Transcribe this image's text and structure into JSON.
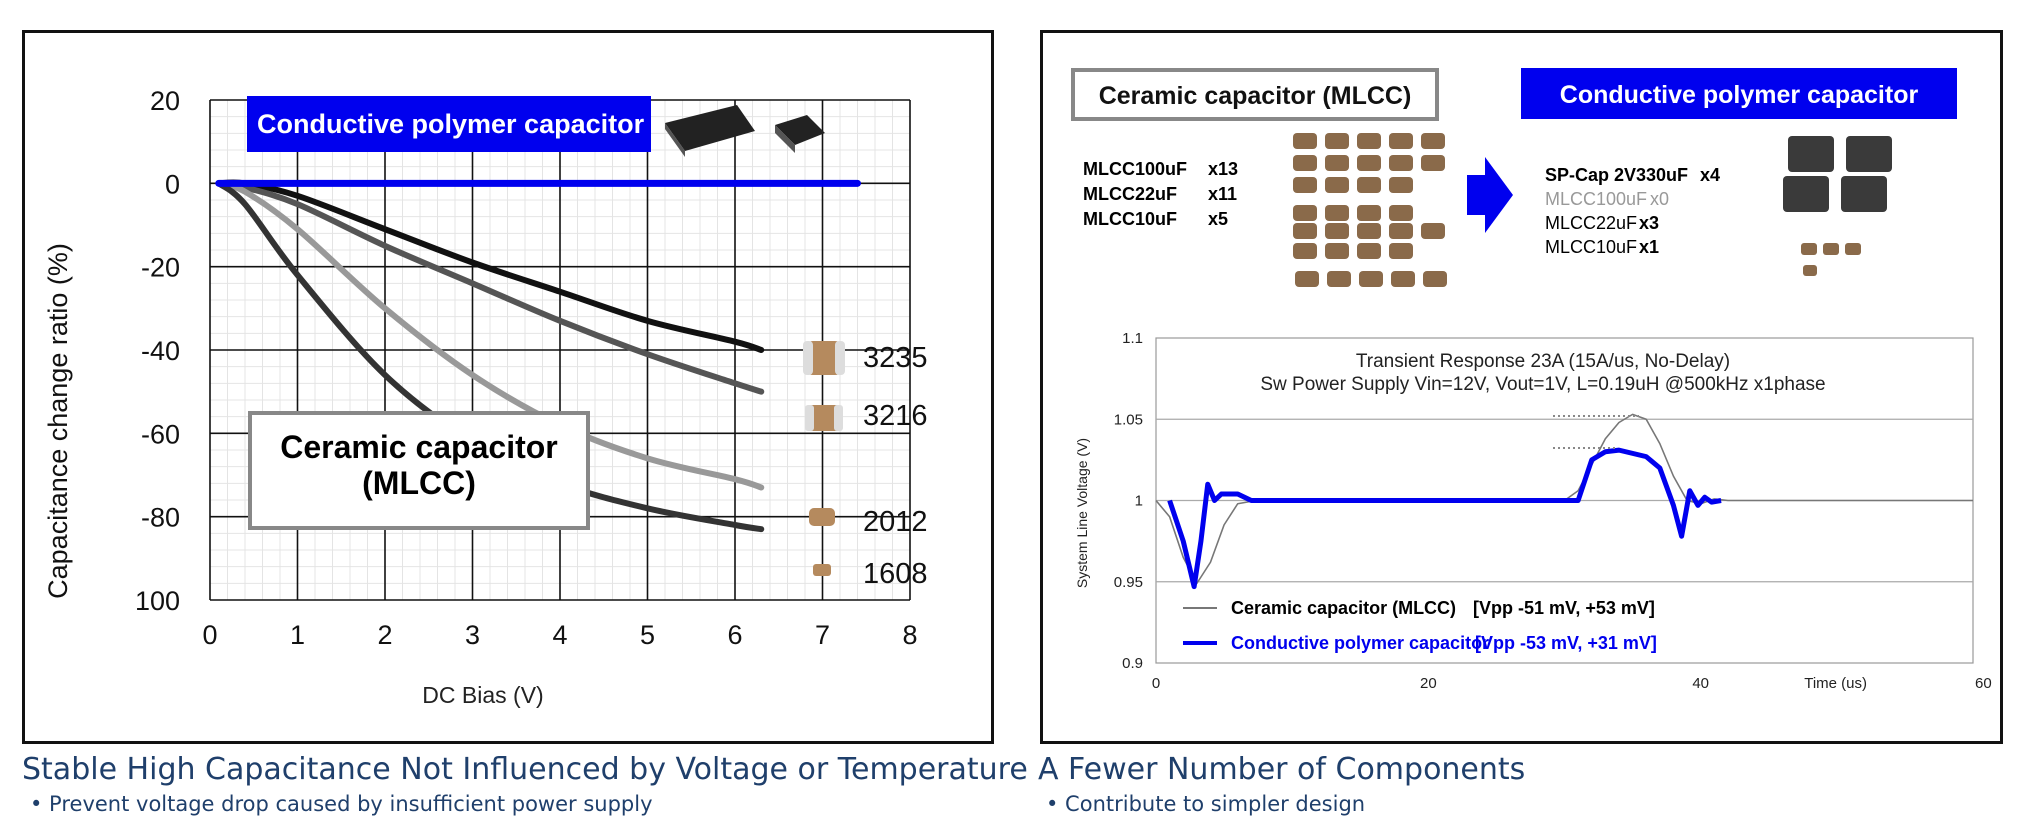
{
  "captions": {
    "left_title": "Stable High Capacitance Not Influenced by Voltage or Temperature",
    "left_sub": "• Prevent voltage drop caused by insufficient power supply",
    "right_title": "A Fewer Number of Components",
    "right_sub": "• Contribute to simpler design"
  },
  "colors": {
    "blue": "#0000ee",
    "navy": "#1f3f6b"
  },
  "chart_data": [
    {
      "type": "line",
      "xlabel": "DC Bias (V)",
      "ylabel": "Capacitance change ratio (%)",
      "xlim": [
        0,
        8
      ],
      "ylim": [
        -100,
        20
      ],
      "xticks": [
        "0",
        "1",
        "2",
        "3",
        "4",
        "5",
        "6",
        "7",
        "8"
      ],
      "yticks": [
        "20",
        "0",
        "-20",
        "-40",
        "-60",
        "-80",
        "100"
      ],
      "grid": true,
      "polymer_label": "Conductive polymer capacitor",
      "ceramic_label_line1": "Ceramic capacitor",
      "ceramic_label_line2": "(MLCC)",
      "series": [
        {
          "name": "3235",
          "color": "#111111",
          "x": [
            0.1,
            0.4,
            1,
            2,
            3,
            4,
            5,
            6,
            6.3
          ],
          "y": [
            0,
            0,
            -3,
            -11,
            -19,
            -26,
            -33,
            -38,
            -40
          ]
        },
        {
          "name": "3216",
          "color": "#555555",
          "x": [
            0.1,
            0.4,
            1,
            2,
            3,
            4,
            5,
            6,
            6.3
          ],
          "y": [
            0,
            -1,
            -5,
            -15,
            -24,
            -33,
            -41,
            -48,
            -50
          ]
        },
        {
          "name": "2012",
          "color": "#999999",
          "x": [
            0.1,
            0.4,
            1,
            2,
            3,
            4,
            5,
            6,
            6.3
          ],
          "y": [
            0,
            -2,
            -11,
            -30,
            -46,
            -58,
            -66,
            -71,
            -73
          ]
        },
        {
          "name": "1608",
          "color": "#333333",
          "x": [
            0.1,
            0.4,
            1,
            2,
            3,
            4,
            5,
            6,
            6.3
          ],
          "y": [
            0,
            -5,
            -22,
            -46,
            -62,
            -72,
            -78,
            -82,
            -83
          ]
        },
        {
          "name": "Conductive polymer capacitor",
          "color": "#0000ee",
          "x": [
            0.1,
            7.4
          ],
          "y": [
            0,
            0
          ]
        }
      ]
    },
    {
      "type": "line",
      "title_line1": "Transient Response 23A  (15A/us, No-Delay)",
      "title_line2": "Sw Power Supply  Vin=12V, Vout=1V, L=0.19uH @500kHz x1phase",
      "ylabel": "System Line Voltage (V)",
      "xlabel": "Time (us)",
      "xlim": [
        0,
        60
      ],
      "ylim": [
        0.9,
        1.1
      ],
      "xticks": [
        "0",
        "20",
        "40",
        "60"
      ],
      "yticks": [
        "1.1",
        "1.05",
        "1",
        "0.95",
        "0.9"
      ],
      "series": [
        {
          "name": "Ceramic capacitor (MLCC)",
          "value_label": "[Vpp -51 mV, +53 mV]",
          "color": "#777777",
          "x": [
            0,
            1,
            2,
            3,
            4,
            5,
            6,
            8,
            12,
            20,
            30,
            31,
            32,
            33,
            34,
            35,
            36,
            37,
            38,
            39,
            40,
            41,
            42,
            45,
            50,
            60
          ],
          "y": [
            1,
            0.99,
            0.965,
            0.949,
            0.962,
            0.985,
            0.998,
            1.001,
            1,
            1,
            1,
            1.006,
            1.022,
            1.038,
            1.048,
            1.053,
            1.05,
            1.035,
            1.015,
            1,
            0.998,
            1.001,
            1,
            1,
            1,
            1
          ]
        },
        {
          "name": "Conductive polymer capacitor",
          "value_label": "[Vpp -53 mV, +31 mV]",
          "color": "#0000ee",
          "x": [
            1,
            2,
            2.8,
            3.3,
            3.8,
            4.3,
            4.8,
            5.3,
            6,
            7,
            31,
            32,
            33,
            34,
            35,
            36,
            37,
            38,
            38.6,
            39.2,
            39.8,
            40.3,
            40.8,
            41.5
          ],
          "y": [
            1,
            0.975,
            0.947,
            0.975,
            1.01,
            1,
            1.004,
            1.004,
            1.004,
            1,
            1,
            1.025,
            1.03,
            1.031,
            1.029,
            1.027,
            1.02,
            0.997,
            0.978,
            1.006,
            0.997,
            1.002,
            0.999,
            1
          ]
        }
      ]
    }
  ],
  "comparison": {
    "mlcc_label": "Ceramic capacitor (MLCC)",
    "polymer_label": "Conductive polymer capacitor",
    "mlcc_parts": [
      {
        "name": "MLCC100uF",
        "qty": "x13"
      },
      {
        "name": "MLCC22uF",
        "qty": "x11"
      },
      {
        "name": "MLCC10uF",
        "qty": "x5"
      }
    ],
    "polymer_parts": [
      {
        "name": "SP-Cap 2V330uF",
        "qty": "x4"
      },
      {
        "name": "MLCC100uF",
        "qty": "x0"
      },
      {
        "name": "MLCC22uF",
        "qty": "x3"
      },
      {
        "name": "MLCC10uF",
        "qty": "x1"
      }
    ]
  },
  "legend": {
    "ceramic_name": "Ceramic capacitor (MLCC)",
    "ceramic_value": "[Vpp -51 mV, +53 mV]",
    "polymer_name": "Conductive polymer capacitor",
    "polymer_value": "[Vpp -53 mV, +31 mV]"
  }
}
